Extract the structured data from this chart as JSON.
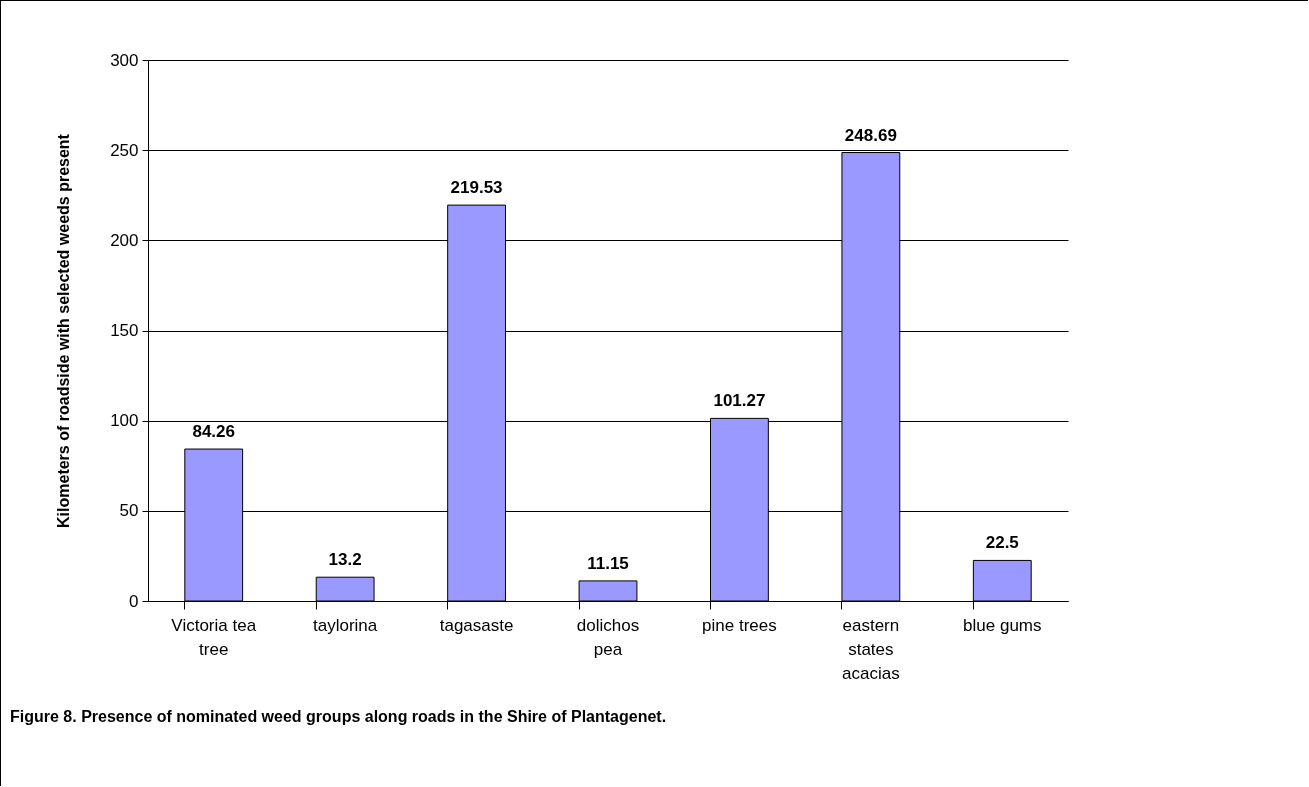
{
  "chart_data": {
    "type": "bar",
    "title": "Figure 8. Presence of nominated weed groups along roads in the Shire of Plantagenet.",
    "ylabel": "Kilometers of roadside with selected weeds present",
    "categories": [
      "Victoria tea tree",
      "taylorina",
      "tagasaste",
      "dolichos pea",
      "pine trees",
      "eastern states acacias",
      "blue gums"
    ],
    "values": [
      84.26,
      13.2,
      219.53,
      11.15,
      101.27,
      248.69,
      22.5
    ],
    "color": "#9999ff",
    "ylim": [
      0,
      300
    ],
    "yticks": [
      0,
      50,
      100,
      150,
      200,
      250,
      300
    ],
    "grid": "y",
    "data_labels": true
  }
}
